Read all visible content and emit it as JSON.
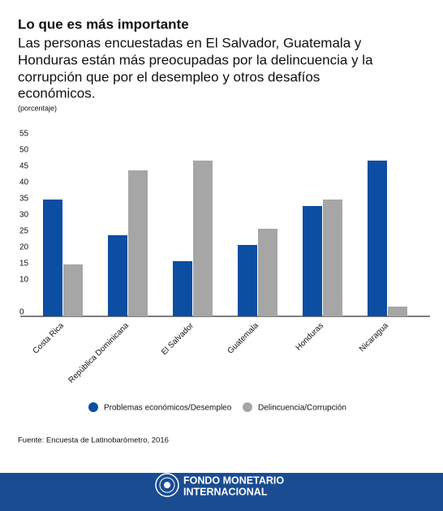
{
  "chart_data": {
    "type": "bar",
    "title": "Lo que es más importante",
    "subtitle": [
      "Las personas encuestadas en El Salvador, Guatemala y",
      "Honduras están más preocupadas por la delincuencia y la",
      "corrupción que por el desempleo y otros desafíos",
      "económicos."
    ],
    "y_label": "(porcentaje)",
    "categories": [
      "Costa Rica",
      "República Dominicana",
      "El Salvador",
      "Guatemala",
      "Honduras",
      "Nicaragua"
    ],
    "series": [
      {
        "name": "Problemas económicos/Desempleo",
        "color": "#0b4ea2",
        "values": [
          36,
          25,
          17,
          22,
          34,
          48
        ]
      },
      {
        "name": "Delincuencia/Corrupción",
        "color": "#a6a6a6",
        "values": [
          16,
          45,
          48,
          27,
          36,
          3
        ]
      }
    ],
    "ylim": [
      0,
      55
    ],
    "yticks": [
      0,
      10,
      15,
      20,
      25,
      30,
      35,
      40,
      45,
      50,
      55
    ],
    "source": "Fuente: Encuesta de Latinobarómetro, 2016"
  },
  "footer": {
    "org_line1": "FONDO MONETARIO",
    "org_line2": "INTERNACIONAL"
  }
}
